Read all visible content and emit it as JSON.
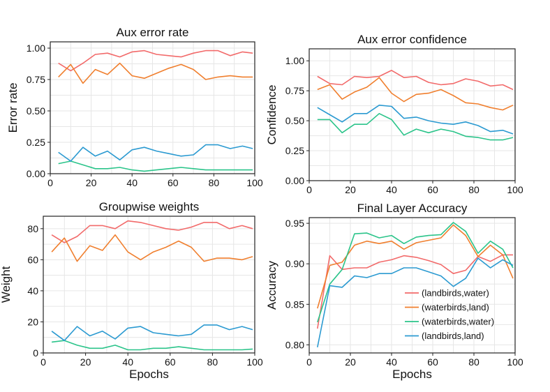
{
  "colors": {
    "landbirds_water": "#f26a6a",
    "waterbirds_land": "#f07f2e",
    "waterbirds_water": "#2bc48a",
    "landbirds_land": "#2b9ad1"
  },
  "legend": {
    "items": [
      {
        "label": "(landbirds,water)",
        "color_key": "landbirds_water"
      },
      {
        "label": "(waterbirds,land)",
        "color_key": "waterbirds_land"
      },
      {
        "label": "(waterbirds,water)",
        "color_key": "waterbirds_water"
      },
      {
        "label": "(landbirds,land)",
        "color_key": "landbirds_land"
      }
    ]
  },
  "chart_data": [
    {
      "id": "aux_error_rate",
      "type": "line",
      "title": "Aux error rate",
      "xlabel": "",
      "ylabel": "Error rate",
      "xlim": [
        0,
        100
      ],
      "ylim": [
        0,
        1.05
      ],
      "xticks": [
        0,
        20,
        40,
        60,
        80,
        100
      ],
      "xtick_labels": [
        "0",
        "20",
        "40",
        "60",
        "80",
        "100"
      ],
      "yticks": [
        0,
        0.25,
        0.5,
        0.75,
        1.0
      ],
      "ytick_labels": [
        "0.00",
        "0.25",
        "0.50",
        "0.75",
        "1.00"
      ],
      "grid": true,
      "x": [
        4,
        10,
        16,
        22,
        28,
        34,
        40,
        46,
        52,
        58,
        64,
        70,
        76,
        82,
        88,
        94,
        99
      ],
      "series": [
        {
          "name": "(landbirds,water)",
          "color_key": "landbirds_water",
          "values": [
            0.88,
            0.82,
            0.88,
            0.95,
            0.96,
            0.93,
            0.97,
            0.98,
            0.95,
            0.94,
            0.93,
            0.96,
            0.98,
            0.98,
            0.94,
            0.97,
            0.96
          ]
        },
        {
          "name": "(waterbirds,land)",
          "color_key": "waterbirds_land",
          "values": [
            0.77,
            0.87,
            0.72,
            0.83,
            0.79,
            0.88,
            0.78,
            0.76,
            0.8,
            0.84,
            0.87,
            0.83,
            0.75,
            0.77,
            0.78,
            0.77,
            0.77
          ]
        },
        {
          "name": "(waterbirds,water)",
          "color_key": "waterbirds_water",
          "values": [
            0.08,
            0.1,
            0.07,
            0.04,
            0.04,
            0.05,
            0.03,
            0.02,
            0.03,
            0.04,
            0.05,
            0.04,
            0.03,
            0.03,
            0.03,
            0.03,
            0.03
          ]
        },
        {
          "name": "(landbirds,land)",
          "color_key": "landbirds_land",
          "values": [
            0.17,
            0.1,
            0.21,
            0.14,
            0.18,
            0.11,
            0.19,
            0.21,
            0.18,
            0.16,
            0.14,
            0.15,
            0.23,
            0.23,
            0.2,
            0.22,
            0.2
          ]
        }
      ]
    },
    {
      "id": "aux_error_confidence",
      "type": "line",
      "title": "Aux error confidence",
      "xlabel": "",
      "ylabel": "Confidence",
      "xlim": [
        0,
        100
      ],
      "ylim": [
        0,
        1.1
      ],
      "xticks": [
        0,
        20,
        40,
        60,
        80,
        100
      ],
      "xtick_labels": [
        "0",
        "20",
        "40",
        "60",
        "80",
        "100"
      ],
      "yticks": [
        0,
        0.25,
        0.5,
        0.75,
        1.0
      ],
      "ytick_labels": [
        "0.00",
        "0.25",
        "0.50",
        "0.75",
        "1.00"
      ],
      "grid": true,
      "x": [
        4,
        10,
        16,
        22,
        28,
        34,
        40,
        46,
        52,
        58,
        64,
        70,
        76,
        82,
        88,
        94,
        99
      ],
      "series": [
        {
          "name": "(landbirds,water)",
          "color_key": "landbirds_water",
          "values": [
            0.87,
            0.81,
            0.8,
            0.87,
            0.86,
            0.87,
            0.92,
            0.86,
            0.87,
            0.82,
            0.8,
            0.81,
            0.85,
            0.83,
            0.79,
            0.8,
            0.76
          ]
        },
        {
          "name": "(waterbirds,land)",
          "color_key": "waterbirds_land",
          "values": [
            0.76,
            0.8,
            0.68,
            0.74,
            0.78,
            0.86,
            0.73,
            0.66,
            0.72,
            0.73,
            0.76,
            0.71,
            0.65,
            0.64,
            0.61,
            0.59,
            0.63
          ]
        },
        {
          "name": "(waterbirds,water)",
          "color_key": "waterbirds_water",
          "values": [
            0.51,
            0.51,
            0.4,
            0.47,
            0.47,
            0.56,
            0.51,
            0.38,
            0.43,
            0.4,
            0.43,
            0.41,
            0.37,
            0.36,
            0.34,
            0.34,
            0.36
          ]
        },
        {
          "name": "(landbirds,land)",
          "color_key": "landbirds_land",
          "values": [
            0.61,
            0.55,
            0.49,
            0.56,
            0.56,
            0.63,
            0.62,
            0.52,
            0.53,
            0.5,
            0.48,
            0.47,
            0.49,
            0.46,
            0.41,
            0.42,
            0.39
          ]
        }
      ]
    },
    {
      "id": "groupwise_weights",
      "type": "line",
      "title": "Groupwise weights",
      "xlabel": "Epochs",
      "ylabel": "Weight",
      "xlim": [
        0,
        100
      ],
      "ylim": [
        0,
        88
      ],
      "xticks": [
        0,
        20,
        40,
        60,
        80,
        100
      ],
      "xtick_labels": [
        "0",
        "20",
        "40",
        "60",
        "80",
        "100"
      ],
      "yticks": [
        0,
        20,
        40,
        60,
        80
      ],
      "ytick_labels": [
        "0",
        "20",
        "40",
        "60",
        "80"
      ],
      "grid": true,
      "x": [
        4,
        10,
        16,
        22,
        28,
        34,
        40,
        46,
        52,
        58,
        64,
        70,
        76,
        82,
        88,
        94,
        99
      ],
      "series": [
        {
          "name": "(landbirds,water)",
          "color_key": "landbirds_water",
          "values": [
            76,
            71,
            75,
            82,
            82,
            80,
            85,
            84,
            82,
            80,
            79,
            81,
            84,
            84,
            80,
            82,
            80
          ]
        },
        {
          "name": "(waterbirds,land)",
          "color_key": "waterbirds_land",
          "values": [
            65,
            74,
            59,
            69,
            66,
            76,
            65,
            60,
            65,
            68,
            72,
            68,
            59,
            61,
            61,
            60,
            62
          ]
        },
        {
          "name": "(waterbirds,water)",
          "color_key": "waterbirds_water",
          "values": [
            7,
            8,
            5,
            3,
            3,
            5,
            2,
            2,
            3,
            3,
            4,
            3,
            2,
            2,
            2,
            2,
            2.5
          ]
        },
        {
          "name": "(landbirds,land)",
          "color_key": "landbirds_land",
          "values": [
            14,
            8,
            17,
            11,
            14,
            9,
            16,
            17,
            13,
            12,
            11,
            12,
            18,
            18,
            15,
            17,
            15
          ]
        }
      ]
    },
    {
      "id": "final_layer_accuracy",
      "type": "line",
      "title": "Final Layer Accuracy",
      "xlabel": "Epochs",
      "ylabel": "Accuracy",
      "xlim": [
        0,
        100
      ],
      "ylim": [
        0.79,
        0.957
      ],
      "xticks": [
        0,
        20,
        40,
        60,
        80,
        100
      ],
      "xtick_labels": [
        "0",
        "20",
        "40",
        "60",
        "80",
        "100"
      ],
      "yticks": [
        0.8,
        0.85,
        0.9,
        0.95
      ],
      "ytick_labels": [
        "0.80",
        "0.85",
        "0.90",
        "0.95"
      ],
      "grid": true,
      "legend_position": "lower-right",
      "x": [
        4,
        10,
        16,
        22,
        28,
        34,
        40,
        46,
        52,
        58,
        64,
        70,
        76,
        82,
        88,
        94,
        99
      ],
      "series": [
        {
          "name": "(landbirds,water)",
          "color_key": "landbirds_water",
          "values": [
            0.82,
            0.91,
            0.893,
            0.895,
            0.895,
            0.902,
            0.905,
            0.91,
            0.908,
            0.904,
            0.899,
            0.888,
            0.892,
            0.909,
            0.903,
            0.911,
            0.911
          ]
        },
        {
          "name": "(waterbirds,land)",
          "color_key": "waterbirds_land",
          "values": [
            0.845,
            0.898,
            0.902,
            0.923,
            0.928,
            0.925,
            0.928,
            0.918,
            0.926,
            0.929,
            0.932,
            0.948,
            0.935,
            0.909,
            0.923,
            0.911,
            0.882
          ]
        },
        {
          "name": "(waterbirds,water)",
          "color_key": "waterbirds_water",
          "values": [
            0.828,
            0.875,
            0.893,
            0.937,
            0.938,
            0.932,
            0.935,
            0.925,
            0.933,
            0.935,
            0.936,
            0.951,
            0.94,
            0.913,
            0.928,
            0.918,
            0.895
          ]
        },
        {
          "name": "(landbirds,land)",
          "color_key": "landbirds_land",
          "values": [
            0.797,
            0.873,
            0.871,
            0.885,
            0.883,
            0.888,
            0.888,
            0.895,
            0.895,
            0.89,
            0.885,
            0.872,
            0.882,
            0.907,
            0.895,
            0.905,
            0.898
          ]
        }
      ]
    }
  ]
}
